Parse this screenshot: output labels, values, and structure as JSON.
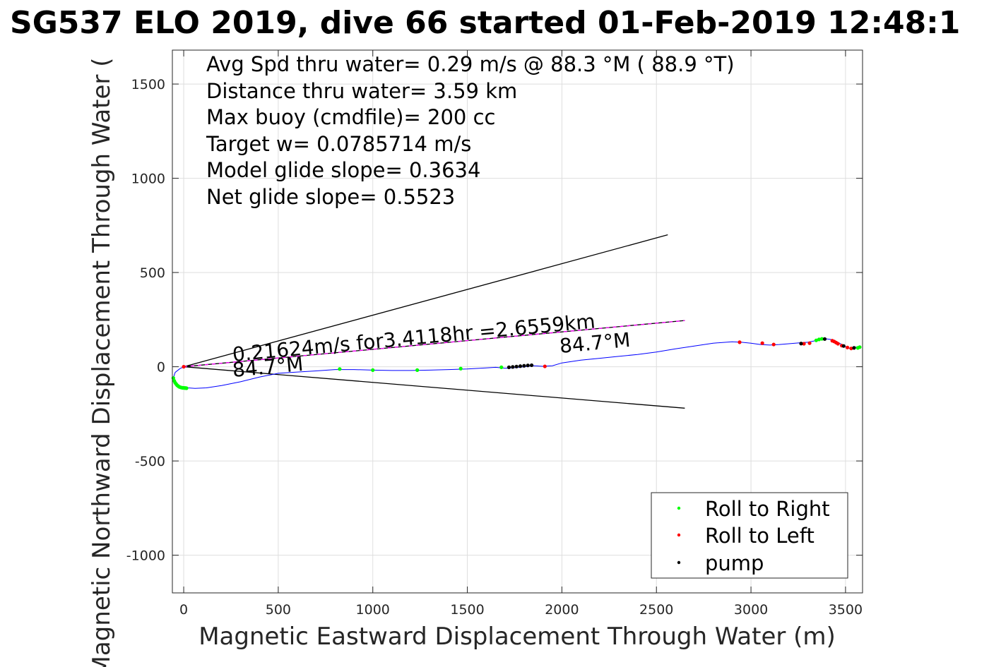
{
  "chart_data": {
    "type": "scatter",
    "title": "SG537 ELO 2019, dive 66 started 01-Feb-2019 12:48:1",
    "xlabel": "Magnetic Eastward Displacement Through Water (m)",
    "ylabel": "Magnetic Northward Displacement Through Water (",
    "xlim": [
      -60,
      3590
    ],
    "ylim": [
      -1200,
      1680
    ],
    "xticks": [
      0,
      500,
      1000,
      1500,
      2000,
      2500,
      3000,
      3500
    ],
    "yticks": [
      -1000,
      -500,
      0,
      500,
      1000,
      1500
    ],
    "grid": true,
    "legend_position": "bottom-right",
    "stats_lines": [
      "Avg Spd thru water=  0.29 m/s @  88.3 °M ( 88.9 °T)",
      "Distance thru water=  3.59 km",
      "Max buoy (cmdfile)= 200 cc",
      "Target w= 0.0785714 m/s",
      "Model glide slope= 0.3634",
      "Net glide slope= 0.5523"
    ],
    "annotations": {
      "speed_text": "0.21624m/s for3.4118hr =2.6559km",
      "heading_start": "84.7°M",
      "heading_end": "84.7°M"
    },
    "reference_lines": [
      {
        "name": "cone-upper",
        "color": "#000000",
        "x": [
          0,
          2560
        ],
        "y": [
          0,
          700
        ]
      },
      {
        "name": "cone-lower",
        "color": "#000000",
        "x": [
          0,
          2650
        ],
        "y": [
          0,
          -220
        ]
      },
      {
        "name": "heading-line",
        "color": "#000000",
        "x": [
          0,
          2650
        ],
        "y": [
          0,
          245
        ]
      },
      {
        "name": "heading-line-dashed",
        "color": "#ff00ff",
        "x": [
          0,
          2650
        ],
        "y": [
          0,
          245
        ]
      }
    ],
    "track": {
      "color": "#0000ff",
      "x": [
        0,
        -20,
        -45,
        -55,
        -50,
        -35,
        -10,
        20,
        60,
        120,
        200,
        300,
        400,
        500,
        600,
        700,
        800,
        900,
        1000,
        1100,
        1200,
        1300,
        1400,
        1500,
        1600,
        1650,
        1700,
        1750,
        1800,
        1850,
        1900,
        1950,
        2000,
        2100,
        2200,
        2300,
        2400,
        2500,
        2600,
        2650,
        2700,
        2800,
        2900,
        2950,
        3000,
        3050,
        3100,
        3150,
        3200,
        3250,
        3300,
        3350,
        3380,
        3400,
        3420,
        3440,
        3460,
        3480,
        3500,
        3520,
        3540,
        3560,
        3580
      ],
      "y": [
        0,
        -10,
        -30,
        -60,
        -85,
        -100,
        -108,
        -112,
        -115,
        -112,
        -100,
        -80,
        -55,
        -35,
        -28,
        -22,
        -15,
        -15,
        -18,
        -20,
        -20,
        -18,
        -15,
        -12,
        -6,
        -3,
        -8,
        -5,
        0,
        5,
        2,
        5,
        20,
        35,
        45,
        55,
        65,
        78,
        95,
        102,
        110,
        125,
        132,
        130,
        125,
        118,
        115,
        118,
        122,
        126,
        130,
        140,
        145,
        148,
        145,
        140,
        130,
        118,
        105,
        98,
        100,
        105,
        108
      ]
    },
    "series": [
      {
        "name": "Roll to Right",
        "color": "#00ff00",
        "x": [
          -55,
          -50,
          -45,
          -40,
          -35,
          -30,
          -25,
          -20,
          -15,
          -10,
          -5,
          0,
          5,
          10,
          15,
          825,
          1000,
          1235,
          1465,
          1680,
          3345,
          3360,
          3375,
          3565,
          3575
        ],
        "y": [
          -60,
          -75,
          -85,
          -92,
          -98,
          -102,
          -106,
          -108,
          -110,
          -111,
          -112,
          -112,
          -113,
          -113,
          -114,
          -12,
          -18,
          -18,
          -10,
          -3,
          140,
          145,
          148,
          100,
          104
        ]
      },
      {
        "name": "Roll to Left",
        "color": "#ff0000",
        "x": [
          0,
          1910,
          2940,
          3060,
          3120,
          3280,
          3310,
          3430,
          3440,
          3450,
          3460,
          3480,
          3510,
          3530
        ],
        "y": [
          0,
          2,
          130,
          125,
          118,
          122,
          125,
          138,
          134,
          128,
          122,
          112,
          102,
          97
        ]
      },
      {
        "name": "pump",
        "color": "#000000",
        "x": [
          1720,
          1740,
          1760,
          1780,
          1800,
          1820,
          1840,
          3265,
          3390,
          3490,
          3545
        ],
        "y": [
          -3,
          -1,
          1,
          3,
          5,
          7,
          8,
          123,
          147,
          110,
          100
        ]
      }
    ]
  }
}
